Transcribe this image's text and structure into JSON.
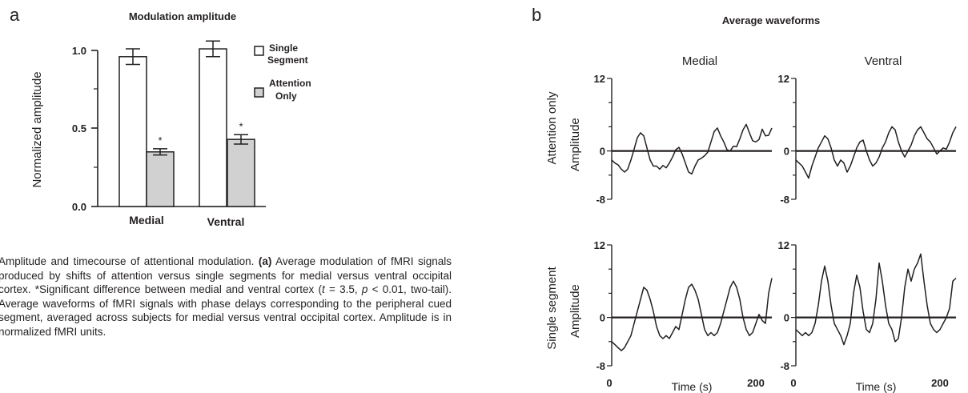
{
  "panel_a": {
    "letter": "a"
  },
  "panel_b": {
    "letter": "b"
  },
  "caption": {
    "lead": "Amplitude and timecourse of attentional modulation.",
    "a_tag": "(a)",
    "a_text": "Average modulation of fMRI signals produced by shifts of attention versus single segments for medial versus ventral occipital cortex. *Significant difference between medial and ventral cortex (",
    "t_sym": "t",
    "mid1": " = 3.5, ",
    "p_sym": "p",
    "mid2": " < 0.01, two-tail).",
    "b_text": "Average waveforms of fMRI signals with phase delays corresponding to the peripheral cued segment, averaged across subjects for medial versus ventral occipital cortex. Amplitude is in normalized fMRI units."
  },
  "chart_data": [
    {
      "type": "bar",
      "title": "Modulation amplitude",
      "ylabel": "Normalized amplitude",
      "xlabel": "",
      "categories": [
        "Medial",
        "Ventral"
      ],
      "ylim": [
        0,
        1.0
      ],
      "yticks": [
        "0.0",
        "0.5",
        "1.0"
      ],
      "series": [
        {
          "name": "Single Segment",
          "legend_lines": [
            "Single",
            "Segment"
          ],
          "color": "#ffffff",
          "values": [
            0.96,
            1.01
          ],
          "errors": [
            0.05,
            0.05
          ]
        },
        {
          "name": "Attention Only",
          "legend_lines": [
            "Attention",
            "Only"
          ],
          "color": "#d1d1d1",
          "values": [
            0.35,
            0.43
          ],
          "errors": [
            0.02,
            0.03
          ]
        }
      ],
      "annotations": [
        "*",
        "*"
      ],
      "legend": "top-right"
    },
    {
      "type": "line",
      "title": "Average waveforms",
      "columns": [
        "Medial",
        "Ventral"
      ],
      "rows": [
        "Attention only",
        "Single segment"
      ],
      "xlabel": "Time (s)",
      "ylabel": "Amplitude",
      "xlim": [
        0,
        200
      ],
      "xticks": [
        "0",
        "200"
      ],
      "ylim": [
        -8,
        12
      ],
      "yticks": [
        "-8",
        "0",
        "12"
      ],
      "baseline": 0,
      "plots": [
        {
          "row": "Attention only",
          "col": "Medial",
          "x": [
            0,
            4,
            8,
            12,
            16,
            20,
            24,
            28,
            32,
            36,
            40,
            44,
            48,
            52,
            56,
            60,
            64,
            68,
            72,
            76,
            80,
            84,
            88,
            92,
            96,
            100,
            104,
            108,
            112,
            116,
            120,
            124,
            128,
            132,
            136,
            140,
            144,
            148,
            152,
            156,
            160,
            164,
            168,
            172,
            176,
            180,
            184,
            188,
            192,
            196,
            200
          ],
          "y": [
            -1.5,
            -2,
            -2.3,
            -3,
            -3.5,
            -3,
            -1.5,
            0.3,
            2.2,
            3,
            2.5,
            0.5,
            -1.5,
            -2.5,
            -2.5,
            -3,
            -2.4,
            -2.8,
            -2,
            -1,
            0.2,
            0.6,
            -0.5,
            -2,
            -3.5,
            -3.8,
            -2.5,
            -1.5,
            -1.2,
            -0.8,
            -0.2,
            1.5,
            3.2,
            3.8,
            2.5,
            1.5,
            0.2,
            0,
            0.8,
            0.7,
            2,
            3.5,
            4.4,
            3,
            1.7,
            1.5,
            1.9,
            3.6,
            2.5,
            2.6,
            3.8
          ]
        },
        {
          "row": "Attention only",
          "col": "Ventral",
          "x": [
            0,
            4,
            8,
            12,
            16,
            20,
            24,
            28,
            32,
            36,
            40,
            44,
            48,
            52,
            56,
            60,
            64,
            68,
            72,
            76,
            80,
            84,
            88,
            92,
            96,
            100,
            104,
            108,
            112,
            116,
            120,
            124,
            128,
            132,
            136,
            140,
            144,
            148,
            152,
            156,
            160,
            164,
            168,
            172,
            176,
            180,
            184,
            188,
            192,
            196,
            200
          ],
          "y": [
            -1.5,
            -2,
            -2.5,
            -3.5,
            -4.5,
            -2.5,
            -1,
            0.5,
            1.5,
            2.5,
            2,
            0.5,
            -1.5,
            -2.5,
            -1.5,
            -2,
            -3.5,
            -2.5,
            -1,
            0.5,
            1.5,
            1.8,
            0,
            -1.5,
            -2.5,
            -2,
            -1,
            0.5,
            1.5,
            3,
            4,
            3.5,
            1.5,
            0,
            -1,
            0,
            1,
            2.5,
            3.5,
            4,
            3,
            2,
            1.5,
            0.5,
            -0.5,
            0,
            0.5,
            0.3,
            1.5,
            3,
            4
          ]
        },
        {
          "row": "Single segment",
          "col": "Medial",
          "x": [
            0,
            4,
            8,
            12,
            16,
            20,
            24,
            28,
            32,
            36,
            40,
            44,
            48,
            52,
            56,
            60,
            64,
            68,
            72,
            76,
            80,
            84,
            88,
            92,
            96,
            100,
            104,
            108,
            112,
            116,
            120,
            124,
            128,
            132,
            136,
            140,
            144,
            148,
            152,
            156,
            160,
            164,
            168,
            172,
            176,
            180,
            184,
            188,
            192,
            196,
            200
          ],
          "y": [
            -4,
            -4.5,
            -5,
            -5.5,
            -5,
            -4,
            -3,
            -1,
            1,
            3,
            5,
            4.5,
            3,
            1,
            -1.5,
            -3,
            -3.5,
            -3,
            -3.5,
            -2.5,
            -1.5,
            -2,
            0.5,
            3,
            5,
            5.5,
            4.5,
            3,
            0.5,
            -2,
            -3,
            -2.5,
            -3,
            -2.5,
            -1,
            1,
            3,
            5,
            6,
            5,
            3,
            0,
            -2,
            -3,
            -2.5,
            -1,
            0.5,
            -0.5,
            -1,
            4,
            6.5
          ]
        },
        {
          "row": "Single segment",
          "col": "Ventral",
          "x": [
            0,
            4,
            8,
            12,
            16,
            20,
            24,
            28,
            32,
            36,
            40,
            44,
            48,
            52,
            56,
            60,
            64,
            68,
            72,
            76,
            80,
            84,
            88,
            92,
            96,
            100,
            104,
            108,
            112,
            116,
            120,
            124,
            128,
            132,
            136,
            140,
            144,
            148,
            152,
            156,
            160,
            164,
            168,
            172,
            176,
            180,
            184,
            188,
            192,
            196,
            200
          ],
          "y": [
            -2,
            -2.5,
            -3,
            -2.5,
            -3,
            -2.5,
            -1,
            2,
            6,
            8.5,
            6,
            2,
            -1,
            -2,
            -3,
            -4.5,
            -3,
            -1,
            4,
            7,
            5,
            1,
            -2,
            -2.5,
            -1,
            3,
            9,
            6,
            2,
            -1,
            -2,
            -4,
            -3.5,
            0,
            5,
            8,
            6,
            8,
            9,
            10.5,
            6,
            2,
            -1,
            -2,
            -2.5,
            -2,
            -1,
            0,
            1.5,
            6,
            6.5
          ]
        }
      ]
    }
  ]
}
